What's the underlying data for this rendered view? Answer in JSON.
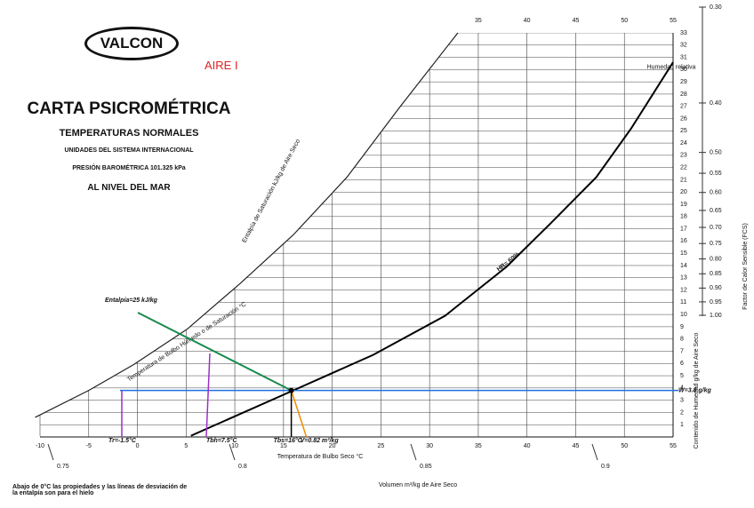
{
  "header": {
    "brand": "VALCON",
    "note": "AIRE I",
    "title": "CARTA PSICROMÉTRICA",
    "subtitle": "TEMPERATURAS NORMALES",
    "units": "UNIDADES DEL SISTEMA INTERNACIONAL",
    "pressure": "PRESIÓN BAROMÉTRICA     101.325 kPa",
    "level": "AL NIVEL DEL MAR"
  },
  "footnote": "Abajo de 0°C las propiedades y las líneas de desviación de la entalpía son para el hielo",
  "chart_data": {
    "type": "psychrometric",
    "xlabel": "Temperatura de Bulbo Seco   °C",
    "ylabel": "Contenido de Humedad g/kg de Aire Seco",
    "saturation_label": "Entalpía de Saturación   kJ/kg de Aire Seco",
    "wet_bulb_label": "Temperatura de Bulbo Húmedo o de Saturación °C",
    "volume_label": "Volumen    m³/kg de Aire Seco",
    "fcs_label": "Factor de Calor Sensible (FCS)",
    "xlim": [
      -10,
      55
    ],
    "xticks": [
      -10,
      -5,
      0,
      5,
      10,
      15,
      20,
      25,
      30,
      35,
      40,
      45,
      50,
      55
    ],
    "ylim": [
      0,
      33
    ],
    "yticks": [
      1,
      2,
      3,
      4,
      5,
      6,
      7,
      8,
      9,
      10,
      11,
      12,
      13,
      14,
      15,
      16,
      17,
      18,
      19,
      20,
      21,
      22,
      23,
      24,
      25,
      26,
      27,
      28,
      29,
      30,
      31,
      32,
      33
    ],
    "volume_ticks": [
      0.75,
      0.8,
      0.85,
      0.9
    ],
    "fcs_ticks": [
      {
        "value": 0.3,
        "label": "0.30"
      },
      {
        "value": 0.4,
        "label": "0.40"
      },
      {
        "value": 0.5,
        "label": "0.50"
      },
      0.55,
      {
        "value": 0.6,
        "label": "0.60"
      },
      0.65,
      {
        "value": 0.7,
        "label": "0.70"
      },
      0.75,
      {
        "value": 0.8,
        "label": "0.80"
      },
      0.85,
      {
        "value": 0.9,
        "label": "0.90"
      },
      0.95,
      {
        "value": 1,
        "label": "1.00"
      }
    ],
    "saturation": {
      "x": [
        -10.5,
        -5.0,
        -0.4,
        5.1,
        10.5,
        16.0,
        21.5,
        27.0,
        32.9
      ],
      "values": [
        1.6,
        3.8,
        5.9,
        8.8,
        12.5,
        16.5,
        21.2,
        27.0,
        33.0
      ],
      "color": "#222222"
    },
    "rh_curve": {
      "label": "HR= 60%",
      "x": [
        5.5,
        16.0,
        24.2,
        31.6,
        37.9,
        42.5,
        47.1,
        50.7,
        55.0
      ],
      "values": [
        0.1,
        3.8,
        6.7,
        9.9,
        13.9,
        17.5,
        21.2,
        25.2,
        30.6
      ],
      "color": "#000000"
    },
    "rh_top_label": "Humedad relativa",
    "point": {
      "x": 15.8,
      "y": 3.8
    },
    "annotations": [
      {
        "text": "Tbs=16°C",
        "color": "#000000"
      },
      {
        "text": "Tr=-1.5°C",
        "color": "#9b30c8"
      },
      {
        "text": "Tbh=7.5°C",
        "color": "#9b30c8"
      },
      {
        "text": "V=0.82 m³/kg",
        "color": "#f08c00"
      },
      {
        "text": "Entalpía=25 kJ/kg",
        "color": "#1a8a4a"
      },
      {
        "text": "W=3.8 g/kg",
        "color": "#1e6fe0"
      }
    ]
  }
}
